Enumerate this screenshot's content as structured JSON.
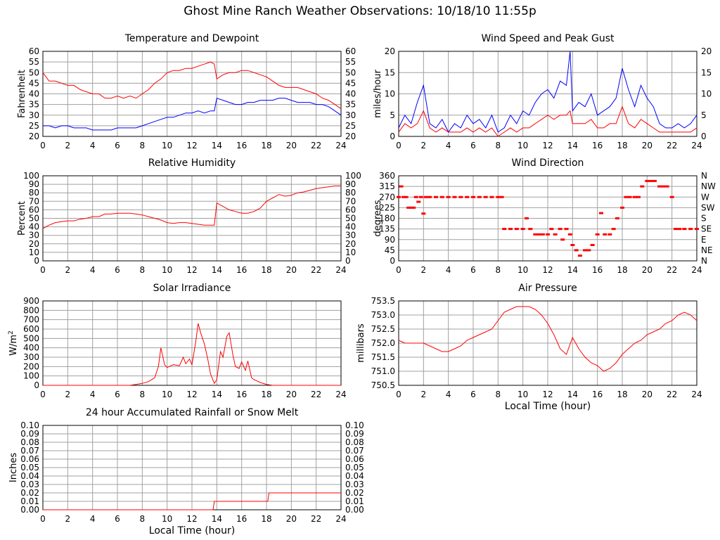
{
  "page": {
    "title": "Ghost Mine Ranch Weather Observations: 10/18/10 11:55p"
  },
  "colors": {
    "red": "#ff0000",
    "blue": "#0000ff",
    "grid": "#a0a0a0"
  },
  "chart_data": [
    {
      "id": "temperature",
      "type": "line",
      "title": "Temperature and Dewpoint",
      "ylabel": "Fahrenheit",
      "xlabel": "",
      "xlim": [
        0,
        24
      ],
      "ylim": [
        20,
        60
      ],
      "xticks": [
        "0",
        "2",
        "4",
        "6",
        "8",
        "10",
        "12",
        "14",
        "16",
        "18",
        "20",
        "22",
        "24"
      ],
      "yticks": [
        "20",
        "25",
        "30",
        "35",
        "40",
        "45",
        "50",
        "55",
        "60"
      ],
      "right_axis": true,
      "grid": true,
      "series": [
        {
          "color": "#ff0000",
          "x": [
            0,
            0.5,
            1,
            1.5,
            2,
            2.5,
            3,
            3.5,
            4,
            4.5,
            5,
            5.5,
            6,
            6.5,
            7,
            7.5,
            8,
            8.5,
            9,
            9.5,
            10,
            10.5,
            11,
            11.5,
            12,
            12.5,
            13,
            13.5,
            13.8,
            14,
            14.5,
            15,
            15.5,
            16,
            16.5,
            17,
            17.5,
            18,
            18.5,
            19,
            19.5,
            20,
            20.5,
            21,
            21.5,
            22,
            22.5,
            23,
            23.5,
            24
          ],
          "values": [
            50,
            46,
            46,
            45,
            44,
            44,
            42,
            41,
            40,
            40,
            38,
            38,
            39,
            38,
            39,
            38,
            40,
            42,
            45,
            47,
            50,
            51,
            51,
            52,
            52,
            53,
            54,
            55,
            54,
            47,
            49,
            50,
            50,
            51,
            51,
            50,
            49,
            48,
            46,
            44,
            43,
            43,
            43,
            42,
            41,
            40,
            38,
            37,
            35,
            33
          ]
        },
        {
          "color": "#0000ff",
          "x": [
            0,
            0.5,
            1,
            1.5,
            2,
            2.5,
            3,
            3.5,
            4,
            4.5,
            5,
            5.5,
            6,
            6.5,
            7,
            7.5,
            8,
            8.5,
            9,
            9.5,
            10,
            10.5,
            11,
            11.5,
            12,
            12.5,
            13,
            13.5,
            13.8,
            14,
            14.5,
            15,
            15.5,
            16,
            16.5,
            17,
            17.5,
            18,
            18.5,
            19,
            19.5,
            20,
            20.5,
            21,
            21.5,
            22,
            22.5,
            23,
            23.5,
            24
          ],
          "values": [
            25,
            25,
            24,
            25,
            25,
            24,
            24,
            24,
            23,
            23,
            23,
            23,
            24,
            24,
            24,
            24,
            25,
            26,
            27,
            28,
            29,
            29,
            30,
            31,
            31,
            32,
            31,
            32,
            32,
            38,
            37,
            36,
            35,
            35,
            36,
            36,
            37,
            37,
            37,
            38,
            38,
            37,
            36,
            36,
            36,
            35,
            35,
            34,
            32,
            30
          ]
        }
      ]
    },
    {
      "id": "wind-speed",
      "type": "line",
      "title": "Wind Speed and Peak Gust",
      "ylabel": "miles/hour",
      "xlabel": "",
      "xlim": [
        0,
        24
      ],
      "ylim": [
        0,
        20
      ],
      "xticks": [
        "0",
        "2",
        "4",
        "6",
        "8",
        "10",
        "12",
        "14",
        "16",
        "18",
        "20",
        "22",
        "24"
      ],
      "yticks": [
        "0",
        "5",
        "10",
        "15",
        "20"
      ],
      "right_axis": true,
      "grid": true,
      "series": [
        {
          "color": "#0000ff",
          "x": [
            0,
            0.5,
            1,
            1.5,
            2,
            2.5,
            3,
            3.5,
            4,
            4.5,
            5,
            5.5,
            6,
            6.5,
            7,
            7.5,
            8,
            8.5,
            9,
            9.5,
            10,
            10.5,
            11,
            11.5,
            12,
            12.5,
            13,
            13.5,
            13.8,
            14,
            14.5,
            15,
            15.5,
            16,
            16.5,
            17,
            17.5,
            18,
            18.5,
            19,
            19.5,
            20,
            20.5,
            21,
            21.5,
            22,
            22.5,
            23,
            23.5,
            24
          ],
          "values": [
            2,
            5,
            3,
            8,
            12,
            3,
            2,
            4,
            1,
            3,
            2,
            5,
            3,
            4,
            2,
            5,
            1,
            2,
            5,
            3,
            6,
            5,
            8,
            10,
            11,
            9,
            13,
            12,
            20,
            6,
            8,
            7,
            10,
            5,
            6,
            7,
            9,
            16,
            11,
            7,
            12,
            9,
            7,
            3,
            2,
            2,
            3,
            2,
            3,
            5
          ]
        },
        {
          "color": "#ff0000",
          "x": [
            0,
            0.5,
            1,
            1.5,
            2,
            2.5,
            3,
            3.5,
            4,
            4.5,
            5,
            5.5,
            6,
            6.5,
            7,
            7.5,
            8,
            8.5,
            9,
            9.5,
            10,
            10.5,
            11,
            11.5,
            12,
            12.5,
            13,
            13.5,
            13.8,
            14,
            14.5,
            15,
            15.5,
            16,
            16.5,
            17,
            17.5,
            18,
            18.5,
            19,
            19.5,
            20,
            20.5,
            21,
            21.5,
            22,
            22.5,
            23,
            23.5,
            24
          ],
          "values": [
            1,
            3,
            2,
            3,
            6,
            2,
            1,
            2,
            1,
            1,
            1,
            2,
            1,
            2,
            1,
            2,
            0,
            1,
            2,
            1,
            2,
            2,
            3,
            4,
            5,
            4,
            5,
            5,
            6,
            3,
            3,
            3,
            4,
            2,
            2,
            3,
            3,
            7,
            3,
            2,
            4,
            3,
            2,
            1,
            1,
            1,
            1,
            1,
            1,
            2
          ]
        }
      ]
    },
    {
      "id": "humidity",
      "type": "line",
      "title": "Relative Humidity",
      "ylabel": "Percent",
      "xlabel": "",
      "xlim": [
        0,
        24
      ],
      "ylim": [
        0,
        100
      ],
      "xticks": [
        "0",
        "2",
        "4",
        "6",
        "8",
        "10",
        "12",
        "14",
        "16",
        "18",
        "20",
        "22",
        "24"
      ],
      "yticks": [
        "0",
        "10",
        "20",
        "30",
        "40",
        "50",
        "60",
        "70",
        "80",
        "90",
        "100"
      ],
      "right_axis": true,
      "grid": true,
      "series": [
        {
          "color": "#ff0000",
          "x": [
            0,
            0.5,
            1,
            1.5,
            2,
            2.5,
            3,
            3.5,
            4,
            4.5,
            5,
            5.5,
            6,
            6.5,
            7,
            7.5,
            8,
            8.5,
            9,
            9.5,
            10,
            10.5,
            11,
            11.5,
            12,
            12.5,
            13,
            13.5,
            13.8,
            14,
            14.5,
            15,
            15.5,
            16,
            16.5,
            17,
            17.5,
            18,
            18.5,
            19,
            19.5,
            20,
            20.5,
            21,
            21.5,
            22,
            22.5,
            23,
            23.5,
            24
          ],
          "values": [
            38,
            42,
            45,
            46,
            47,
            47,
            49,
            50,
            52,
            52,
            55,
            55,
            56,
            56,
            56,
            55,
            54,
            52,
            50,
            48,
            45,
            44,
            45,
            45,
            44,
            43,
            42,
            42,
            42,
            68,
            64,
            60,
            58,
            56,
            56,
            58,
            62,
            70,
            74,
            78,
            76,
            77,
            80,
            81,
            83,
            85,
            86,
            87,
            88,
            88
          ]
        }
      ]
    },
    {
      "id": "wind-direction",
      "type": "scatter",
      "title": "Wind Direction",
      "ylabel": "degrees",
      "xlabel": "",
      "xlim": [
        0,
        24
      ],
      "ylim": [
        0,
        360
      ],
      "xticks": [
        "0",
        "2",
        "4",
        "6",
        "8",
        "10",
        "12",
        "14",
        "16",
        "18",
        "20",
        "22",
        "24"
      ],
      "yticks": [
        "0",
        "45",
        "90",
        "135",
        "180",
        "225",
        "270",
        "315",
        "360"
      ],
      "right_ticks": [
        "N",
        "NE",
        "E",
        "SE",
        "S",
        "SW",
        "W",
        "NW",
        "N"
      ],
      "grid": true,
      "series": [
        {
          "color": "#ff0000",
          "x": [
            0,
            0.2,
            0.4,
            0.6,
            0.8,
            1.0,
            1.2,
            1.4,
            1.6,
            1.8,
            2.0,
            2.2,
            2.5,
            3,
            3.5,
            4,
            4.5,
            5,
            5.5,
            6,
            6.5,
            7,
            7.5,
            8,
            8.3,
            8.5,
            9,
            9.5,
            10,
            10.3,
            10.6,
            11,
            11.3,
            11.6,
            12,
            12.3,
            12.6,
            13,
            13.2,
            13.5,
            13.8,
            14,
            14.3,
            14.6,
            15,
            15.3,
            15.6,
            16,
            16.3,
            16.6,
            17,
            17.3,
            17.6,
            18,
            18.3,
            18.6,
            19,
            19.3,
            19.6,
            20,
            20.3,
            20.6,
            21,
            21.3,
            21.6,
            22,
            22.3,
            22.6,
            23,
            23.5,
            24
          ],
          "values": [
            270,
            315,
            270,
            270,
            225,
            225,
            225,
            270,
            250,
            270,
            200,
            270,
            270,
            270,
            270,
            270,
            270,
            270,
            270,
            270,
            270,
            270,
            270,
            270,
            270,
            135,
            135,
            135,
            135,
            180,
            135,
            112,
            112,
            112,
            112,
            135,
            112,
            135,
            90,
            135,
            112,
            67,
            45,
            22,
            45,
            45,
            67,
            112,
            202,
            112,
            112,
            135,
            180,
            225,
            270,
            270,
            270,
            270,
            315,
            338,
            338,
            338,
            315,
            315,
            315,
            270,
            135,
            135,
            135,
            135,
            135
          ]
        }
      ]
    },
    {
      "id": "solar",
      "type": "line",
      "title": "Solar Irradiance",
      "ylabel": "W/m2",
      "xlabel": "",
      "xlim": [
        0,
        24
      ],
      "ylim": [
        0,
        900
      ],
      "xticks": [
        "0",
        "2",
        "4",
        "6",
        "8",
        "10",
        "12",
        "14",
        "16",
        "18",
        "20",
        "22",
        "24"
      ],
      "yticks": [
        "0",
        "100",
        "200",
        "300",
        "400",
        "500",
        "600",
        "700",
        "800",
        "900"
      ],
      "right_axis": false,
      "grid": true,
      "series": [
        {
          "color": "#ff0000",
          "x": [
            0,
            7,
            7.5,
            8,
            8.5,
            9,
            9.3,
            9.5,
            9.8,
            10,
            10.5,
            11,
            11.3,
            11.5,
            11.8,
            12,
            12.3,
            12.5,
            12.7,
            13,
            13.3,
            13.5,
            13.8,
            14,
            14.3,
            14.5,
            14.8,
            15,
            15.3,
            15.5,
            15.8,
            16,
            16.3,
            16.5,
            16.8,
            17,
            17.5,
            18,
            18.5,
            24
          ],
          "values": [
            0,
            0,
            10,
            20,
            40,
            80,
            200,
            400,
            220,
            190,
            220,
            210,
            300,
            230,
            280,
            220,
            460,
            660,
            560,
            440,
            260,
            120,
            20,
            60,
            360,
            300,
            520,
            560,
            320,
            200,
            180,
            250,
            160,
            260,
            80,
            60,
            30,
            10,
            0,
            0
          ]
        }
      ]
    },
    {
      "id": "pressure",
      "type": "line",
      "title": "Air Pressure",
      "ylabel": "millibars",
      "xlabel": "Local Time (hour)",
      "xlim": [
        0,
        24
      ],
      "ylim": [
        750.5,
        753.5
      ],
      "xticks": [
        "0",
        "2",
        "4",
        "6",
        "8",
        "10",
        "12",
        "14",
        "16",
        "18",
        "20",
        "22",
        "24"
      ],
      "yticks": [
        "750.5",
        "751.0",
        "751.5",
        "752.0",
        "752.5",
        "753.0",
        "753.5"
      ],
      "right_axis": false,
      "grid": true,
      "series": [
        {
          "color": "#ff0000",
          "x": [
            0,
            0.5,
            1,
            1.5,
            2,
            2.5,
            3,
            3.5,
            4,
            4.5,
            5,
            5.5,
            6,
            6.5,
            7,
            7.5,
            8,
            8.5,
            9,
            9.5,
            10,
            10.5,
            11,
            11.5,
            12,
            12.5,
            13,
            13.5,
            14,
            14.5,
            15,
            15.5,
            16,
            16.5,
            17,
            17.5,
            18,
            18.5,
            19,
            19.5,
            20,
            20.5,
            21,
            21.5,
            22,
            22.5,
            23,
            23.5,
            24
          ],
          "values": [
            752.1,
            752.0,
            752.0,
            752.0,
            752.0,
            751.9,
            751.8,
            751.7,
            751.7,
            751.8,
            751.9,
            752.1,
            752.2,
            752.3,
            752.4,
            752.5,
            752.8,
            753.1,
            753.2,
            753.3,
            753.3,
            753.3,
            753.2,
            753.0,
            752.7,
            752.3,
            751.8,
            751.6,
            752.2,
            751.8,
            751.5,
            751.3,
            751.2,
            751.0,
            751.1,
            751.3,
            751.6,
            751.8,
            752.0,
            752.1,
            752.3,
            752.4,
            752.5,
            752.7,
            752.8,
            753.0,
            753.1,
            753.0,
            752.8
          ]
        }
      ]
    },
    {
      "id": "rainfall",
      "type": "line",
      "title": "24 hour Accumulated Rainfall or Snow Melt",
      "ylabel": "Inches",
      "xlabel": "Local Time (hour)",
      "xlim": [
        0,
        24
      ],
      "ylim": [
        0,
        0.1
      ],
      "xticks": [
        "0",
        "2",
        "4",
        "6",
        "8",
        "10",
        "12",
        "14",
        "16",
        "18",
        "20",
        "22",
        "24"
      ],
      "yticks": [
        "0.00",
        "0.01",
        "0.02",
        "0.03",
        "0.04",
        "0.05",
        "0.06",
        "0.07",
        "0.08",
        "0.09",
        "0.10"
      ],
      "right_axis": true,
      "grid": true,
      "series": [
        {
          "color": "#ff0000",
          "x": [
            0,
            13.7,
            13.8,
            18.1,
            18.2,
            24
          ],
          "values": [
            0,
            0,
            0.01,
            0.01,
            0.02,
            0.02
          ]
        }
      ]
    }
  ]
}
